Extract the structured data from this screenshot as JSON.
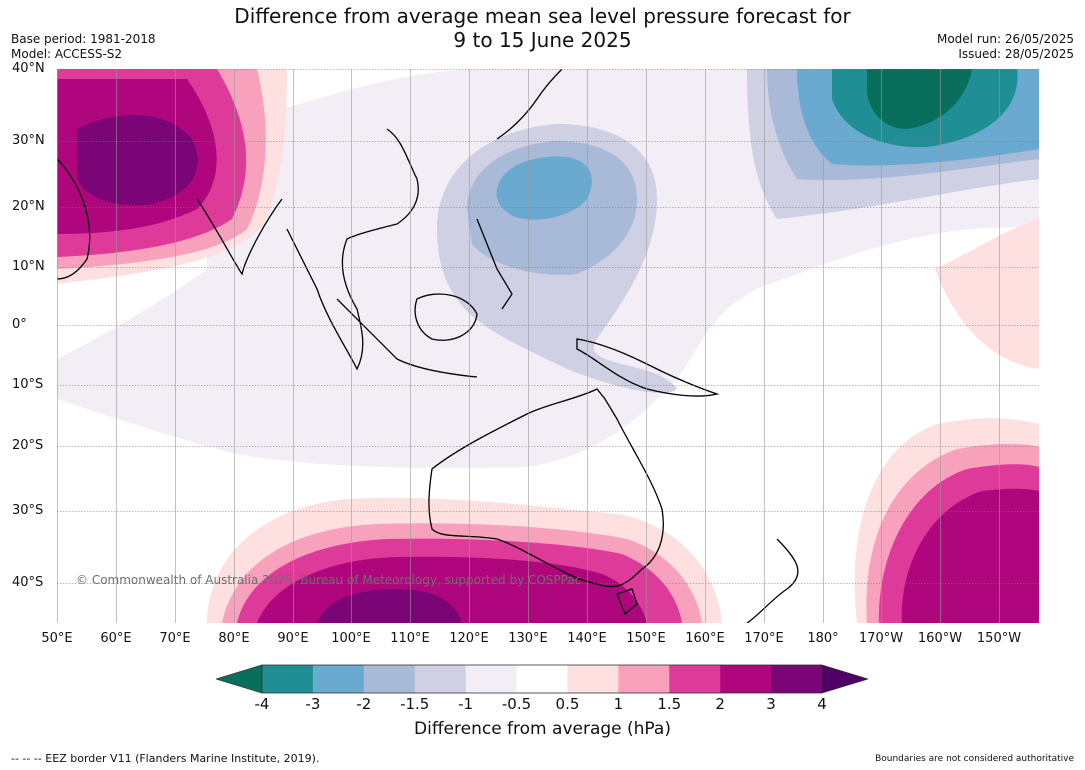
{
  "header": {
    "title_line1": "Difference from average mean sea level pressure forecast for",
    "title_line2": "9 to 15 June 2025",
    "base_period": "Base period: 1981-2018",
    "model": "Model: ACCESS-S2",
    "model_run": "Model run: 26/05/2025",
    "issued": "Issued: 28/05/2025"
  },
  "map": {
    "lat_labels": [
      "40°N",
      "30°N",
      "20°N",
      "10°N",
      "0°",
      "10°S",
      "20°S",
      "30°S",
      "40°S"
    ],
    "lon_labels": [
      "50°E",
      "60°E",
      "70°E",
      "80°E",
      "90°E",
      "100°E",
      "110°E",
      "120°E",
      "130°E",
      "140°E",
      "150°E",
      "160°E",
      "170°E",
      "180°",
      "170°W",
      "160°W",
      "150°W"
    ],
    "copyright": "© Commonwealth of Australia 2025, Bureau of Meteorology, supported by COSPPac"
  },
  "colorbar": {
    "title": "Difference from average (hPa)",
    "tick_labels": [
      "-4",
      "-3",
      "-2",
      "-1.5",
      "-1",
      "-0.5",
      "0.5",
      "1",
      "1.5",
      "2",
      "3",
      "4"
    ],
    "colors": [
      "#0a6e5c",
      "#1f8f95",
      "#6aaad0",
      "#a9bad8",
      "#cfd0e4",
      "#f3eef6",
      "#ffffff",
      "#fde0df",
      "#f7a1bd",
      "#dd3a9a",
      "#b0067d",
      "#7b0476",
      "#4e0066"
    ]
  },
  "footer": {
    "eez": "--  --  -- EEZ border V11 (Flanders Marine Institute, 2019).",
    "disclaimer": "Boundaries are not considered authoritative"
  }
}
